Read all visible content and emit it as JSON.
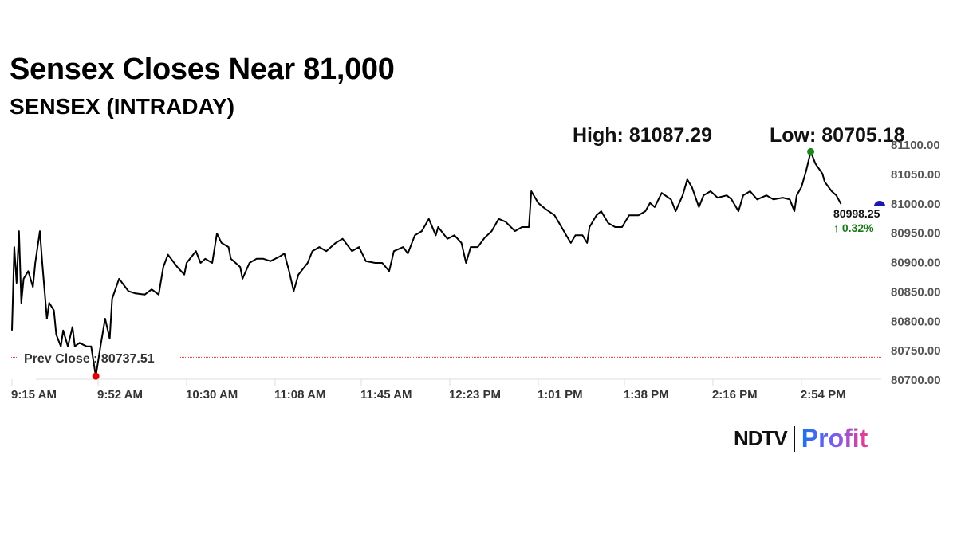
{
  "header": {
    "title": "Sensex Closes Near 81,000",
    "subtitle": "SENSEX (INTRADAY)"
  },
  "stats": {
    "high": "High: 81087.29",
    "low": "Low: 80705.18"
  },
  "logo": {
    "ndtv": "NDTV",
    "profit": "Profit"
  },
  "chart_data": {
    "type": "line",
    "title": "SENSEX (INTRADAY)",
    "xlabel": "",
    "ylabel": "",
    "ylim": [
      80700,
      81100
    ],
    "y_ticks": [
      "81100.00",
      "81050.00",
      "81000.00",
      "80950.00",
      "80900.00",
      "80850.00",
      "80800.00",
      "80750.00",
      "80700.00"
    ],
    "x_ticks": [
      "9:15 AM",
      "9:52 AM",
      "10:30 AM",
      "11:08 AM",
      "11:45 AM",
      "12:23 PM",
      "1:01 PM",
      "1:38 PM",
      "2:16 PM",
      "2:54 PM"
    ],
    "prev_close": {
      "label": "Prev Close : 80737.51",
      "value": 80737.51
    },
    "high": {
      "value": 81087.29,
      "time": "2:58 PM"
    },
    "low": {
      "value": 80705.18,
      "time": "9:51 AM"
    },
    "last": {
      "value": "80998.25",
      "change": "↑ 0.32%"
    },
    "colors": {
      "line": "#000000",
      "prev_close": "#d33",
      "high_marker": "#1a8a1a",
      "low_marker": "#e00000",
      "change": "#1a7a1a",
      "current_marker": "#1a1ab0"
    },
    "grid": false,
    "points": [
      [
        "9:15 AM",
        80783
      ],
      [
        "9:16 AM",
        80925
      ],
      [
        "9:17 AM",
        80864
      ],
      [
        "9:18 AM",
        80952
      ],
      [
        "9:19 AM",
        80830
      ],
      [
        "9:20 AM",
        80871
      ],
      [
        "9:22 AM",
        80884
      ],
      [
        "9:24 AM",
        80857
      ],
      [
        "9:25 AM",
        80898
      ],
      [
        "9:27 AM",
        80952
      ],
      [
        "9:28 AM",
        80898
      ],
      [
        "9:30 AM",
        80803
      ],
      [
        "9:31 AM",
        80830
      ],
      [
        "9:33 AM",
        80817
      ],
      [
        "9:34 AM",
        80776
      ],
      [
        "9:36 AM",
        80756
      ],
      [
        "9:37 AM",
        80783
      ],
      [
        "9:39 AM",
        80756
      ],
      [
        "9:41 AM",
        80789
      ],
      [
        "9:42 AM",
        80756
      ],
      [
        "9:44 AM",
        80762
      ],
      [
        "9:47 AM",
        80756
      ],
      [
        "9:49 AM",
        80756
      ],
      [
        "9:51 AM",
        80705.18
      ],
      [
        "9:53 AM",
        80756
      ],
      [
        "9:55 AM",
        80803
      ],
      [
        "9:57 AM",
        80769
      ],
      [
        "9:58 AM",
        80837
      ],
      [
        "10:01 AM",
        80871
      ],
      [
        "10:05 AM",
        80850
      ],
      [
        "10:08 AM",
        80846
      ],
      [
        "10:12 AM",
        80844
      ],
      [
        "10:15 AM",
        80853
      ],
      [
        "10:18 AM",
        80844
      ],
      [
        "10:20 AM",
        80891
      ],
      [
        "10:22 AM",
        80912
      ],
      [
        "10:26 AM",
        80891
      ],
      [
        "10:29 AM",
        80878
      ],
      [
        "10:30 AM",
        80898
      ],
      [
        "10:34 AM",
        80918
      ],
      [
        "10:36 AM",
        80898
      ],
      [
        "10:38 AM",
        80905
      ],
      [
        "10:41 AM",
        80898
      ],
      [
        "10:43 AM",
        80948
      ],
      [
        "10:45 AM",
        80932
      ],
      [
        "10:48 AM",
        80925
      ],
      [
        "10:49 AM",
        80905
      ],
      [
        "10:53 AM",
        80891
      ],
      [
        "10:54 AM",
        80871
      ],
      [
        "10:57 AM",
        80898
      ],
      [
        "11:00 AM",
        80905
      ],
      [
        "11:03 AM",
        80905
      ],
      [
        "11:06 AM",
        80901
      ],
      [
        "11:10 AM",
        80909
      ],
      [
        "11:12 AM",
        80914
      ],
      [
        "11:14 AM",
        80884
      ],
      [
        "11:16 AM",
        80850
      ],
      [
        "11:18 AM",
        80878
      ],
      [
        "11:22 AM",
        80898
      ],
      [
        "11:24 AM",
        80918
      ],
      [
        "11:27 AM",
        80925
      ],
      [
        "11:30 AM",
        80918
      ],
      [
        "11:34 AM",
        80932
      ],
      [
        "11:37 AM",
        80939
      ],
      [
        "11:41 AM",
        80918
      ],
      [
        "11:44 AM",
        80925
      ],
      [
        "11:47 AM",
        80901
      ],
      [
        "11:51 AM",
        80898
      ],
      [
        "11:54 AM",
        80898
      ],
      [
        "11:57 AM",
        80884
      ],
      [
        "11:59 AM",
        80918
      ],
      [
        "12:03 PM",
        80925
      ],
      [
        "12:05 PM",
        80914
      ],
      [
        "12:08 PM",
        80945
      ],
      [
        "12:11 PM",
        80952
      ],
      [
        "12:14 PM",
        80973
      ],
      [
        "12:17 PM",
        80945
      ],
      [
        "12:18 PM",
        80959
      ],
      [
        "12:22 PM",
        80939
      ],
      [
        "12:25 PM",
        80945
      ],
      [
        "12:28 PM",
        80932
      ],
      [
        "12:30 PM",
        80898
      ],
      [
        "12:32 PM",
        80925
      ],
      [
        "12:35 PM",
        80925
      ],
      [
        "12:38 PM",
        80941
      ],
      [
        "12:41 PM",
        80952
      ],
      [
        "12:44 PM",
        80973
      ],
      [
        "12:47 PM",
        80968
      ],
      [
        "12:51 PM",
        80952
      ],
      [
        "12:54 PM",
        80959
      ],
      [
        "12:57 PM",
        80959
      ],
      [
        "12:58 PM",
        81020
      ],
      [
        "1:01 PM",
        81000
      ],
      [
        "1:04 PM",
        80990
      ],
      [
        "1:08 PM",
        80979
      ],
      [
        "1:11 PM",
        80959
      ],
      [
        "1:13 PM",
        80945
      ],
      [
        "1:15 PM",
        80932
      ],
      [
        "1:17 PM",
        80945
      ],
      [
        "1:20 PM",
        80945
      ],
      [
        "1:22 PM",
        80932
      ],
      [
        "1:23 PM",
        80959
      ],
      [
        "1:26 PM",
        80979
      ],
      [
        "1:28 PM",
        80986
      ],
      [
        "1:31 PM",
        80966
      ],
      [
        "1:34 PM",
        80959
      ],
      [
        "1:37 PM",
        80959
      ],
      [
        "1:40 PM",
        80979
      ],
      [
        "1:44 PM",
        80979
      ],
      [
        "1:47 PM",
        80986
      ],
      [
        "1:49 PM",
        81000
      ],
      [
        "1:51 PM",
        80993
      ],
      [
        "1:54 PM",
        81017
      ],
      [
        "1:58 PM",
        81006
      ],
      [
        "2:00 PM",
        80986
      ],
      [
        "2:03 PM",
        81013
      ],
      [
        "2:05 PM",
        81040
      ],
      [
        "2:07 PM",
        81027
      ],
      [
        "2:10 PM",
        80993
      ],
      [
        "2:12 PM",
        81013
      ],
      [
        "2:15 PM",
        81020
      ],
      [
        "2:18 PM",
        81009
      ],
      [
        "2:22 PM",
        81013
      ],
      [
        "2:24 PM",
        81006
      ],
      [
        "2:27 PM",
        80986
      ],
      [
        "2:29 PM",
        81013
      ],
      [
        "2:32 PM",
        81020
      ],
      [
        "2:35 PM",
        81006
      ],
      [
        "2:39 PM",
        81013
      ],
      [
        "2:42 PM",
        81006
      ],
      [
        "2:46 PM",
        81009
      ],
      [
        "2:49 PM",
        81006
      ],
      [
        "2:51 PM",
        80986
      ],
      [
        "2:52 PM",
        81013
      ],
      [
        "2:54 PM",
        81027
      ],
      [
        "2:56 PM",
        81054
      ],
      [
        "2:58 PM",
        81087.29
      ],
      [
        "3:00 PM",
        81067
      ],
      [
        "3:03 PM",
        81050
      ],
      [
        "3:04 PM",
        81036
      ],
      [
        "3:07 PM",
        81020
      ],
      [
        "3:09 PM",
        81013
      ],
      [
        "3:11 PM",
        80998.25
      ]
    ]
  }
}
